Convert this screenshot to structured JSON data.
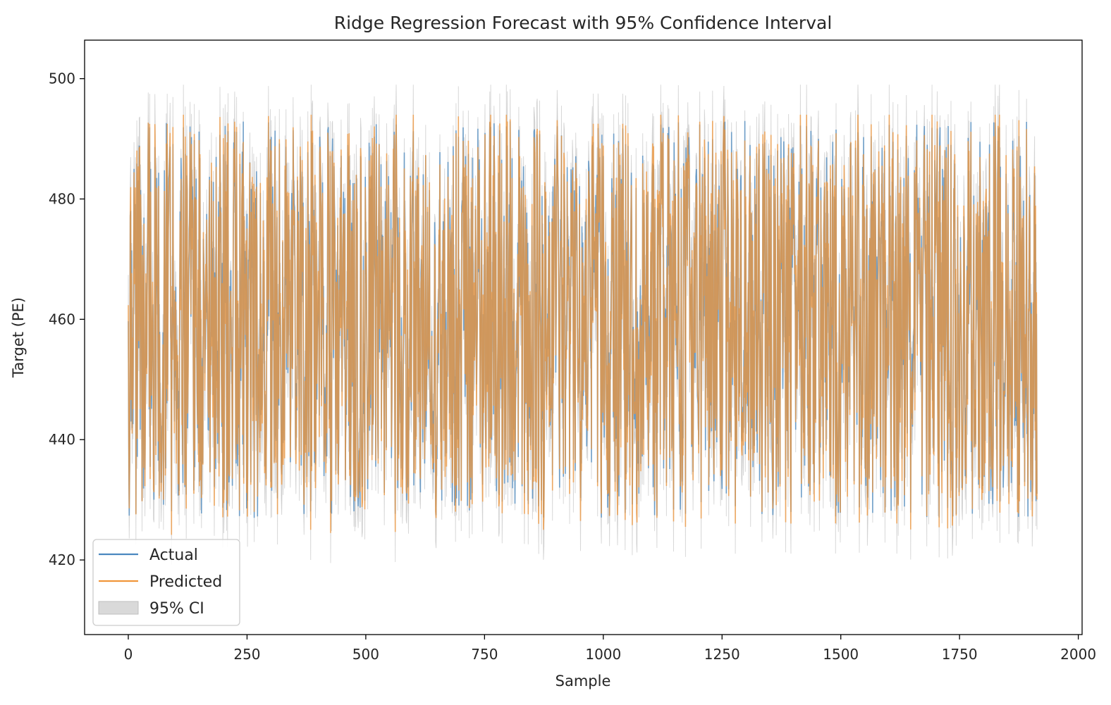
{
  "chart_data": {
    "type": "line",
    "title": "Ridge Regression Forecast with 95% Confidence Interval",
    "xlabel": "Sample",
    "ylabel": "Target (PE)",
    "xlim": [
      -92,
      2008
    ],
    "ylim": [
      407.6,
      506.4
    ],
    "x_ticks": [
      0,
      250,
      500,
      750,
      1000,
      1250,
      1500,
      1750,
      2000
    ],
    "y_ticks": [
      420,
      440,
      460,
      480,
      500
    ],
    "grid": false,
    "legend_position": "lower-left",
    "n_samples": 1914,
    "series": [
      {
        "name": "Actual",
        "color": "#4a88bf",
        "summary": {
          "min": 425,
          "max": 495,
          "mean": 454,
          "typical_low": 430,
          "typical_high": 490
        }
      },
      {
        "name": "Predicted",
        "color": "#f0963a",
        "summary": {
          "min": 421,
          "max": 494,
          "mean": 454,
          "typical_low": 428,
          "typical_high": 488
        }
      },
      {
        "name": "95% CI",
        "color": "#bfbfbf",
        "summary": {
          "min": 412,
          "max": 502,
          "half_width": 5
        }
      }
    ]
  }
}
